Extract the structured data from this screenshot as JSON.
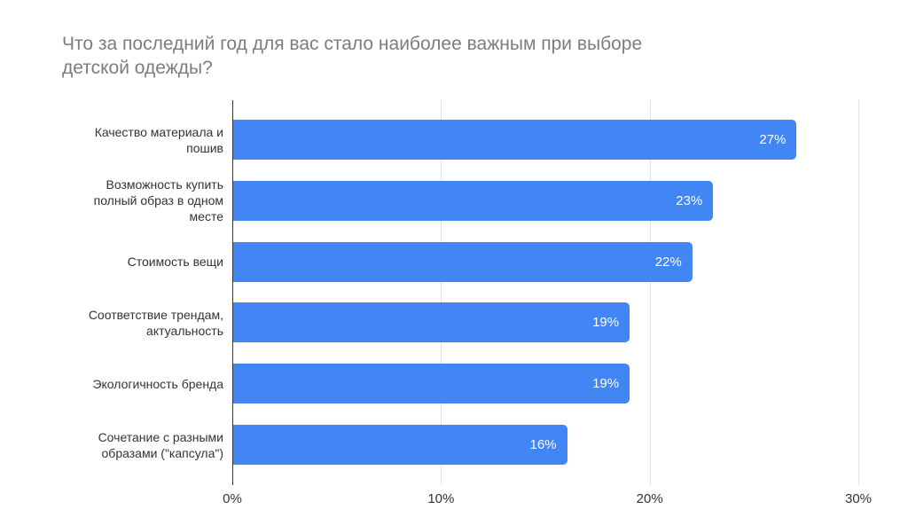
{
  "chart_data": {
    "type": "bar",
    "orientation": "horizontal",
    "title": "Что за последний год для вас стало наиболее важным при выборе\nдетской одежды?",
    "categories": [
      "Качество материала и\nпошив",
      "Возможность купить\nполный образ в одном\nместе",
      "Стоимость вещи",
      "Соответствие трендам,\nактуальность",
      "Экологичность бренда",
      "Сочетание с разными\nобразами (\"капсула\")"
    ],
    "values": [
      27,
      23,
      22,
      19,
      19,
      16
    ],
    "value_labels": [
      "27%",
      "23%",
      "22%",
      "19%",
      "19%",
      "16%"
    ],
    "x_ticks": [
      {
        "value": 0,
        "label": "0%"
      },
      {
        "value": 10,
        "label": "10%"
      },
      {
        "value": 20,
        "label": "20%"
      },
      {
        "value": 30,
        "label": "30%"
      }
    ],
    "xlim": [
      0,
      30
    ],
    "grid": true,
    "legend": "none",
    "colors": {
      "bar": "#4285f4",
      "value_label": "#ffffff",
      "title": "#7d7d7d",
      "axis_labels": "#333333",
      "gridline": "#e2e2e2",
      "baseline": "#333333",
      "background": "#ffffff"
    }
  }
}
